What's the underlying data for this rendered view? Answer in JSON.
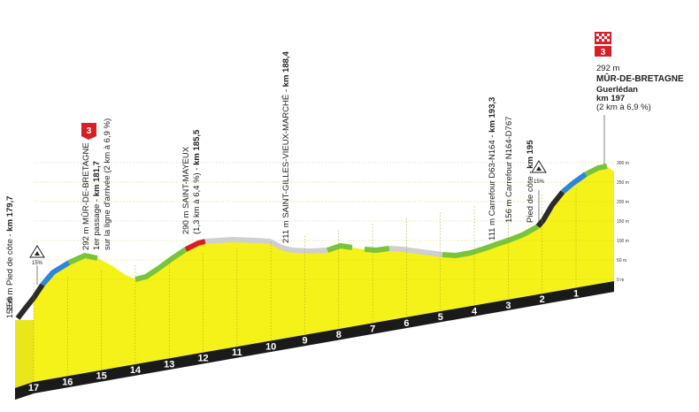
{
  "profile": {
    "start_altitude_label": "156 m",
    "km_markers": [
      "17",
      "16",
      "15",
      "14",
      "13",
      "12",
      "11",
      "10",
      "9",
      "8",
      "7",
      "6",
      "5",
      "4",
      "3",
      "2",
      "1"
    ],
    "altitude_axis": [
      "0 m",
      "50 m",
      "100 m",
      "150 m",
      "200 m",
      "250 m",
      "300 m"
    ],
    "colors": {
      "fill": "#f5f21a",
      "steep": "#2b2b2b",
      "hard": "#2d86d6",
      "moderate": "#78c43a",
      "flat": "#d8d8d8",
      "road_band": "#1a1a1a",
      "km_number": "#ffffff",
      "kom_badge": "#d91f26"
    }
  },
  "annotations": {
    "pied_cote_1": {
      "text_normal": "156 m Pied de côte - ",
      "text_bold": "km 179,7",
      "gradient_sign": "15%"
    },
    "mur_first": {
      "line1_normal": "292 m MÛR-DE-BRETAGNE",
      "line2_normal": "1er passage - ",
      "line2_bold": "km 181,7",
      "line3": "sur la ligne d'arrivée (2 km à 6,9 %)",
      "badge": "3"
    },
    "saint_mayeux": {
      "line1_normal": "290 m SAINT-MAYEUX",
      "line2_normal": "(1,3 km à 6,4 %) - ",
      "line2_bold": "km 185,5"
    },
    "saint_gilles": {
      "text_normal": "211 m SAINT-GILLES-VIEUX-MARCHÉ - ",
      "text_bold": "km 188,4"
    },
    "carrefour_d63": {
      "text_normal": "111 m Carrefour D63-N164 - ",
      "text_bold": "km 193,3"
    },
    "carrefour_n164": {
      "line1": "156 m Carrefour N164-D767",
      "line2_normal": "Pied de côte - ",
      "line2_bold": "km 195",
      "gradient_sign": "15%"
    },
    "finish": {
      "badge": "3",
      "altitude": "292 m",
      "name": "MÛR-DE-BRETAGNE",
      "subname": "Guerlédan",
      "km": "km 197",
      "detail": "(2 km à 6,9 %)"
    }
  }
}
